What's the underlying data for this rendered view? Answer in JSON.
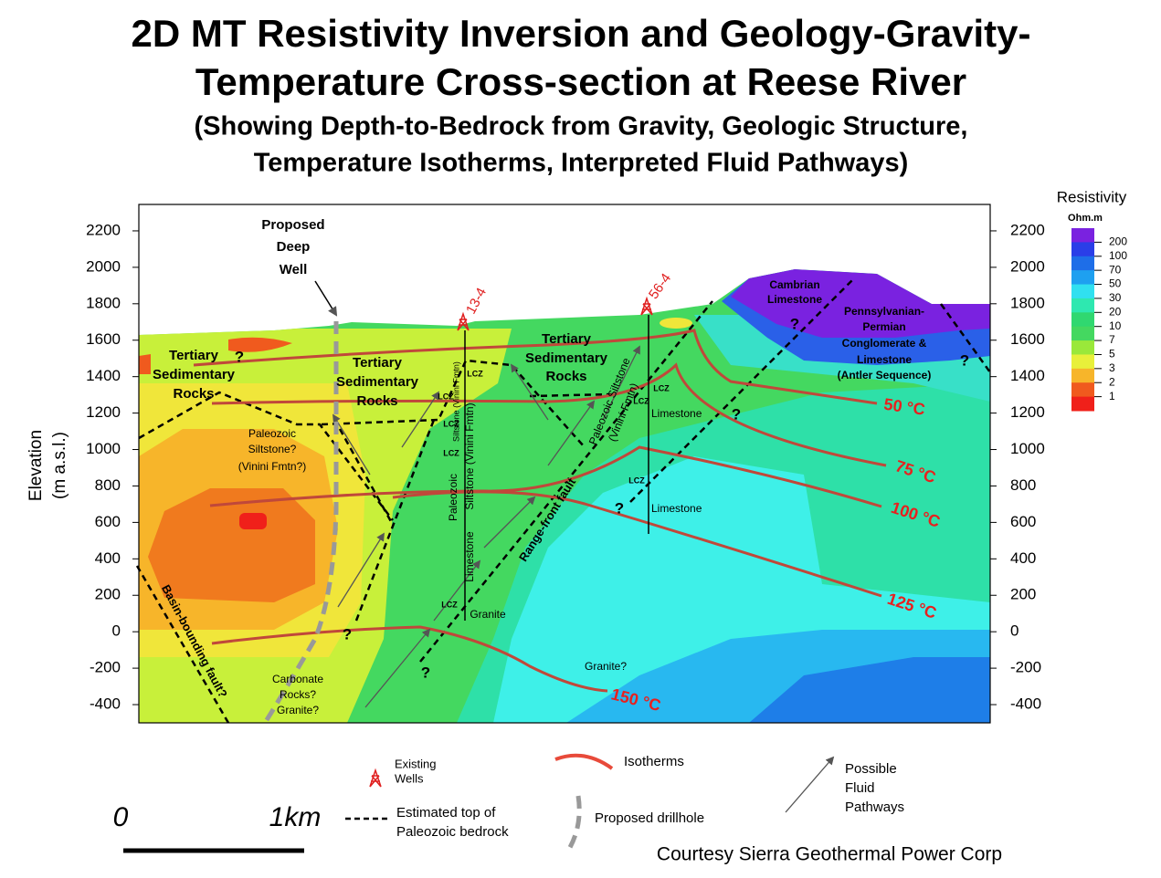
{
  "title": [
    "2D MT Resistivity Inversion and Geology-Gravity-",
    "Temperature Cross-section at Reese River"
  ],
  "subtitle": [
    "(Showing Depth-to-Bedrock from Gravity, Geologic Structure,",
    "Temperature Isotherms, Interpreted Fluid Pathways)"
  ],
  "axis": {
    "label": [
      "Elevation",
      "(m a.s.l.)"
    ],
    "ylim": [
      -500,
      2345
    ],
    "yticks": [
      2200,
      2000,
      1800,
      1600,
      1400,
      1200,
      1000,
      800,
      600,
      400,
      200,
      0,
      -200,
      -400
    ]
  },
  "colorbar": {
    "title": "Resistivity",
    "unit": "Ohm.m",
    "ticks": [
      200,
      100,
      70,
      50,
      30,
      20,
      10,
      7,
      5,
      3,
      2,
      1
    ],
    "colors": [
      "#7a22e0",
      "#2a3ee8",
      "#1e6ee8",
      "#1ea0f0",
      "#30e0f0",
      "#2ee8b0",
      "#30d870",
      "#44d860",
      "#9ae83a",
      "#e8f03a",
      "#f7b52a",
      "#f05a1e",
      "#f0201a"
    ]
  },
  "wells": [
    "13-4",
    "56-4"
  ],
  "proposed_well": [
    "Proposed",
    "Deep",
    "Well"
  ],
  "units": {
    "tertiary_left": [
      "Tertiary",
      "Sedimentary",
      "Rocks"
    ],
    "tertiary_mid": [
      "Tertiary",
      "Sedimentary",
      "Rocks"
    ],
    "tertiary_right": [
      "Tertiary",
      "Sedimentary",
      "Rocks"
    ],
    "siltstone_left": [
      "Paleozoic",
      "Siltstone?",
      "(Vinini Fmtn?)"
    ],
    "cambrian": [
      "Cambrian",
      "Limestone"
    ],
    "antler": [
      "Pennsylvanian-",
      "Permian",
      "Conglomerate &",
      "Limestone",
      "(Antler Sequence)"
    ],
    "carbonate": [
      "Carbonate",
      "Rocks?",
      "Granite?"
    ],
    "granite_q": "Granite?",
    "granite": "Granite",
    "limestone": [
      "Limestone",
      "Limestone"
    ],
    "well13_column": [
      "Paleozoic",
      "Siltstone (Vinini Fmtn)",
      "Limestone",
      "Siltstone (Vinini Fmtn)"
    ],
    "siltstone_right": [
      "Paleozoic Siltstone",
      "(Vinini Fmtn)"
    ],
    "lcz": [
      "LCZ",
      "LCZ",
      "LCZ",
      "LCZ",
      "LCZ",
      "LCZ",
      "LCZ",
      "LCZ"
    ],
    "basin_fault": "Basin-bounding fault?",
    "range_fault": "Range-front fault",
    "question_marks": [
      "?",
      "?",
      "?",
      "?",
      "?",
      "?",
      "?"
    ]
  },
  "isotherms": [
    "50 °C",
    "75 °C",
    "100 °C",
    "125 °C",
    "150 °C"
  ],
  "legend": {
    "wells": [
      "Existing",
      "Wells"
    ],
    "isotherms": "Isotherms",
    "pathways": [
      "Possible",
      "Fluid",
      "Pathways"
    ],
    "bedrock": [
      "Estimated top of",
      "Paleozoic bedrock"
    ],
    "drillhole": "Proposed drillhole"
  },
  "scale": [
    "0",
    "1km"
  ],
  "credit": "Courtesy Sierra Geothermal Power Corp"
}
